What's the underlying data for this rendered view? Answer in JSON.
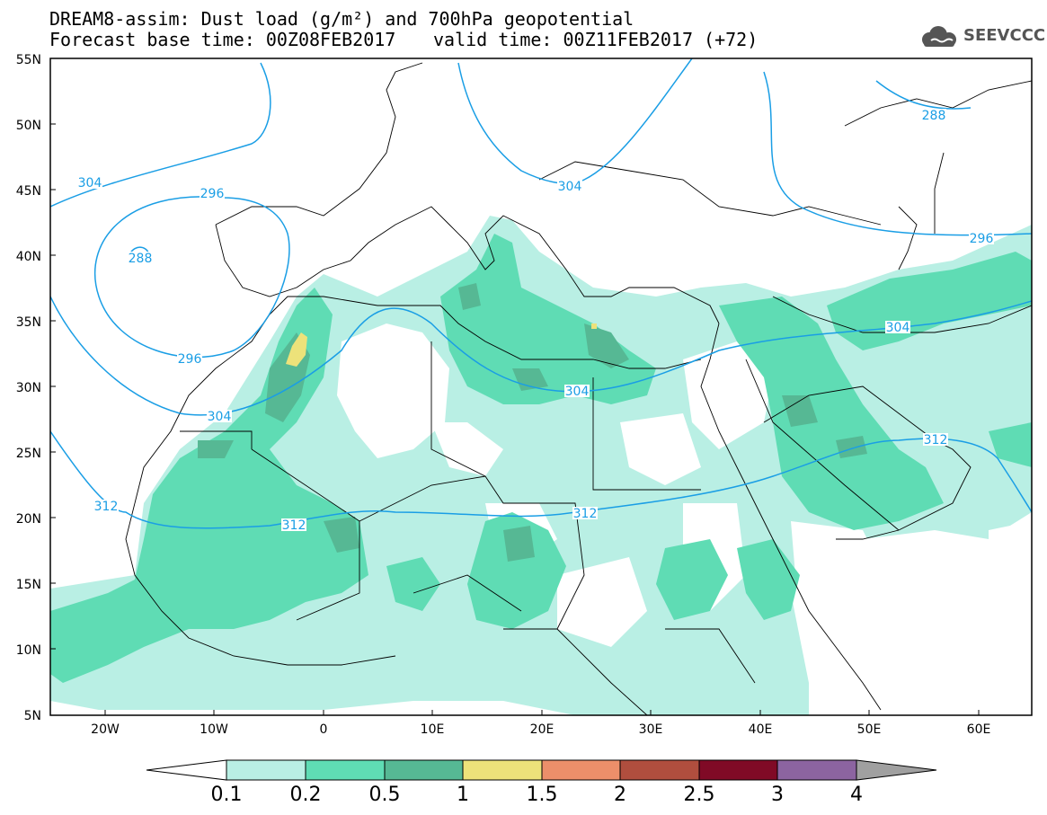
{
  "header": {
    "title_line1": "DREAM8-assim: Dust load (g/m²) and 700hPa geopotential",
    "title_line2": "Forecast base time: 00Z08FEB2017",
    "valid_time": "valid time: 00Z11FEB2017 (+72)",
    "logo_text": "SEEVCCC"
  },
  "axes": {
    "lat_labels": [
      "55N",
      "50N",
      "45N",
      "40N",
      "35N",
      "30N",
      "25N",
      "20N",
      "15N",
      "10N",
      "5N"
    ],
    "lon_labels": [
      "20W",
      "10W",
      "0",
      "10E",
      "20E",
      "30E",
      "40E",
      "50E",
      "60E"
    ]
  },
  "contours": {
    "color": "#1a9ee5",
    "labels": [
      "304",
      "296",
      "288",
      "296",
      "304",
      "312",
      "312",
      "312",
      "304",
      "304",
      "296",
      "288",
      "304",
      "312"
    ]
  },
  "colorbar": {
    "values": [
      "0.1",
      "0.2",
      "0.5",
      "1",
      "1.5",
      "2",
      "2.5",
      "3",
      "4"
    ],
    "colors": [
      "#b9efe4",
      "#5fdcb4",
      "#56b894",
      "#ede27a",
      "#ec8f6a",
      "#b04e3e",
      "#800a26",
      "#8c64a0"
    ],
    "under_color": "#ffffff",
    "over_color": "#a0a0a0"
  }
}
